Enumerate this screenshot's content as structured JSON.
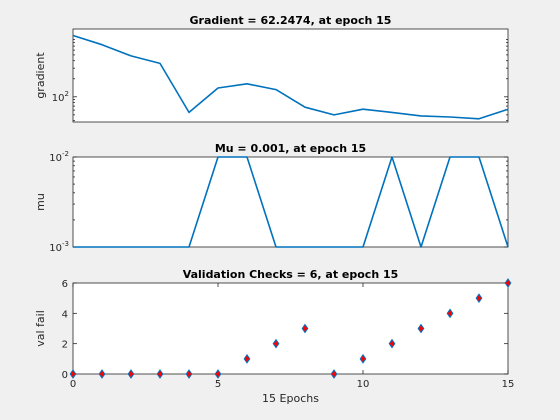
{
  "chart_data": [
    {
      "type": "line",
      "title": "Gradient = 62.2474, at epoch 15",
      "xlabel": "",
      "ylabel": "gradient",
      "yscale": "log",
      "xlim": [
        0,
        15
      ],
      "ylim": [
        38,
        1350
      ],
      "yticks": [
        {
          "value": 100,
          "base": "10",
          "exp": "2"
        }
      ],
      "color": "#0072bd",
      "series": [
        {
          "x": [
            0,
            1,
            2,
            3,
            4,
            5,
            6,
            7,
            8,
            9,
            10,
            11,
            12,
            13,
            14,
            15
          ],
          "values": [
            1050,
            740,
            480,
            360,
            55,
            140,
            165,
            132,
            67,
            50,
            62,
            55,
            48,
            46,
            43,
            62
          ]
        }
      ]
    },
    {
      "type": "line",
      "title": "Mu = 0.001, at epoch 15",
      "xlabel": "",
      "ylabel": "mu",
      "yscale": "log",
      "xlim": [
        0,
        15
      ],
      "ylim": [
        0.001,
        0.01
      ],
      "yticks": [
        {
          "value": 0.01,
          "base": "10",
          "exp": "-2"
        },
        {
          "value": 0.001,
          "base": "10",
          "exp": "-3"
        }
      ],
      "color": "#0072bd",
      "series": [
        {
          "x": [
            0,
            1,
            2,
            3,
            4,
            5,
            6,
            7,
            8,
            9,
            10,
            11,
            12,
            13,
            14,
            15
          ],
          "values": [
            0.001,
            0.001,
            0.001,
            0.001,
            0.001,
            0.01,
            0.01,
            0.001,
            0.001,
            0.001,
            0.001,
            0.01,
            0.001,
            0.01,
            0.01,
            0.001
          ]
        }
      ]
    },
    {
      "type": "scatter",
      "title": "Validation Checks = 6, at epoch 15",
      "xlabel": "15 Epochs",
      "ylabel": "val fail",
      "xlim": [
        0,
        15
      ],
      "ylim": [
        0,
        6
      ],
      "xticks": [
        0,
        5,
        10,
        15
      ],
      "yticks": [
        0,
        2,
        4,
        6
      ],
      "marker": "diamond",
      "marker_fill": "#ff0000",
      "marker_edge": "#0072bd",
      "series": [
        {
          "x": [
            0,
            1,
            2,
            3,
            4,
            5,
            6,
            7,
            8,
            9,
            10,
            11,
            12,
            13,
            14,
            15
          ],
          "values": [
            0,
            0,
            0,
            0,
            0,
            0,
            1,
            2,
            3,
            0,
            1,
            2,
            3,
            4,
            5,
            6
          ]
        }
      ]
    }
  ]
}
